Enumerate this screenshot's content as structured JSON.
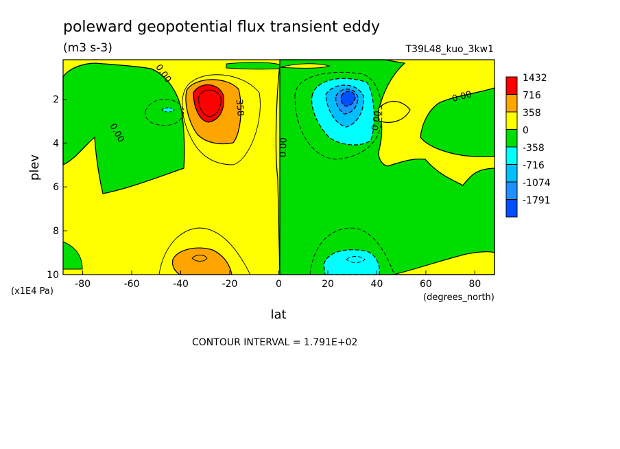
{
  "chart_data": {
    "type": "heatmap",
    "title": "poleward geopotential flux transient eddy",
    "units": "(m3 s-3)",
    "run_label": "T39L48_kuo_3kw1",
    "xlabel": "lat",
    "x_units": "(degrees_north)",
    "ylabel": "plev",
    "y_units": "(x1E4 Pa)",
    "xlim": [
      -88,
      88
    ],
    "ylim": [
      0.2,
      10
    ],
    "y_inverted": true,
    "x_ticks": [
      {
        "value": -80,
        "label": "-80"
      },
      {
        "value": -60,
        "label": "-60"
      },
      {
        "value": -40,
        "label": "-40"
      },
      {
        "value": -20,
        "label": "-20"
      },
      {
        "value": 0,
        "label": "0"
      },
      {
        "value": 20,
        "label": "20"
      },
      {
        "value": 40,
        "label": "40"
      },
      {
        "value": 60,
        "label": "60"
      },
      {
        "value": 80,
        "label": "80"
      }
    ],
    "y_ticks": [
      {
        "value": 2,
        "label": "2"
      },
      {
        "value": 4,
        "label": "4"
      },
      {
        "value": 6,
        "label": "6"
      },
      {
        "value": 8,
        "label": "8"
      },
      {
        "value": 10,
        "label": "10"
      }
    ],
    "contour_interval_text": "CONTOUR INTERVAL = 1.791E+02",
    "colorbar": {
      "levels": [
        "1432",
        "716",
        "358",
        "0",
        "-358",
        "-716",
        "-1074",
        "-1791"
      ],
      "colors": [
        "#ff0000",
        "#ffa500",
        "#ffff00",
        "#00dd00",
        "#00ffff",
        "#00bfff",
        "#1e90ff",
        "#0050ff"
      ]
    },
    "contour_labels": [
      {
        "text": "0.00",
        "lat": -48,
        "plev": 0.9,
        "angle": 55
      },
      {
        "text": "0.00",
        "lat": -67,
        "plev": 3.6,
        "angle": 60
      },
      {
        "text": "358",
        "lat": -17,
        "plev": 2.4,
        "angle": 85
      },
      {
        "text": "0.00",
        "lat": 3,
        "plev": 4.2,
        "angle": -88
      },
      {
        "text": "0.00",
        "lat": 41,
        "plev": 3.0,
        "angle": -80
      },
      {
        "text": "0.00",
        "lat": 75,
        "plev": 2.0,
        "angle": -15
      }
    ],
    "extrema": [
      {
        "region": "SH upper-level positive maximum",
        "lat": -29,
        "plev": 1.9,
        "level": "1432"
      },
      {
        "region": "NH upper-level negative minimum",
        "lat": 29,
        "plev": 1.9,
        "level": "-1791"
      },
      {
        "region": "SH lower-level positive maximum",
        "lat": -29,
        "plev": 9.2,
        "level": "716"
      },
      {
        "region": "NH lower-level negative minimum",
        "lat": 33,
        "plev": 9.2,
        "level": "-716"
      }
    ]
  },
  "colors": {
    "yellow": "#ffff00",
    "green": "#00dd00",
    "orange": "#ffa500",
    "red": "#ff0000",
    "cyan": "#00ffff",
    "light_blue": "#00bfff",
    "blue": "#1e90ff",
    "dark_blue": "#0050ff"
  }
}
